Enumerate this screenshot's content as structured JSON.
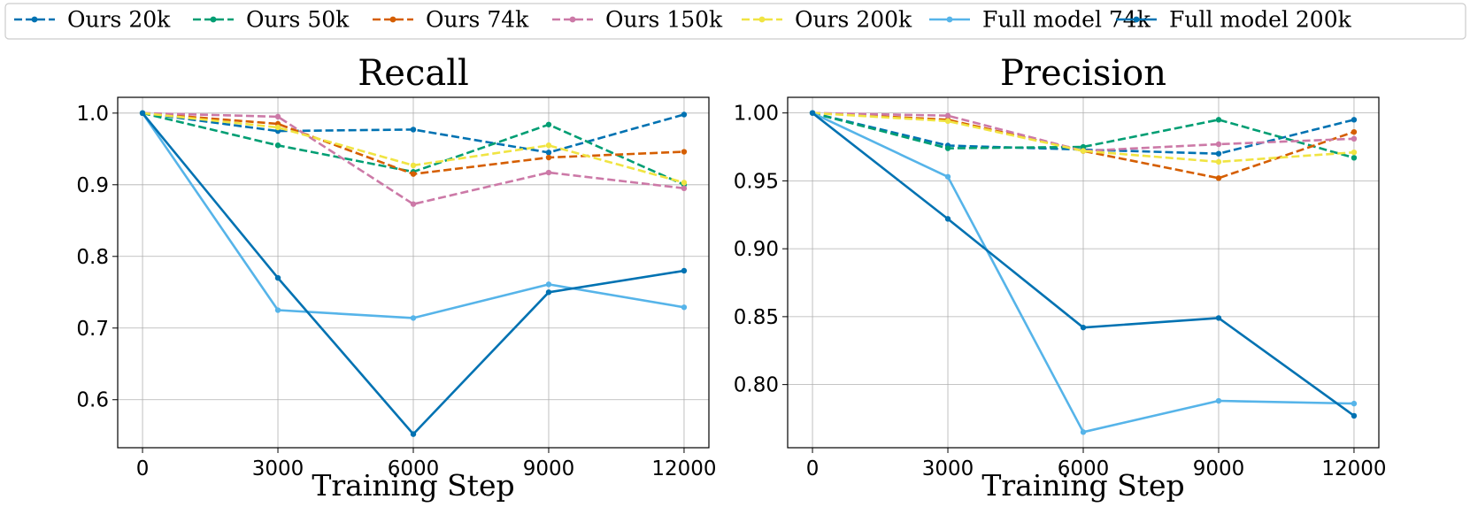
{
  "legend": [
    {
      "name": "Ours 20k",
      "color": "#0072B2",
      "dashed": true
    },
    {
      "name": "Ours 50k",
      "color": "#009E73",
      "dashed": true
    },
    {
      "name": "Ours 74k",
      "color": "#D55E00",
      "dashed": true
    },
    {
      "name": "Ours 150k",
      "color": "#CC79A7",
      "dashed": true
    },
    {
      "name": "Ours 200k",
      "color": "#F0E442",
      "dashed": true
    },
    {
      "name": "Full model 74k",
      "color": "#56B4E9",
      "dashed": false
    },
    {
      "name": "Full model 200k",
      "color": "#0072B2",
      "dashed": false
    }
  ],
  "chart_data": [
    {
      "type": "line",
      "title": "Recall",
      "xlabel": "Training Step",
      "ylabel": "",
      "x": [
        0,
        3000,
        6000,
        9000,
        12000
      ],
      "xticks": [
        "0",
        "3000",
        "6000",
        "9000",
        "12000"
      ],
      "yticks": [
        "0.6",
        "0.7",
        "0.8",
        "0.9",
        "1.0"
      ],
      "ytick_values": [
        0.6,
        0.7,
        0.8,
        0.9,
        1.0
      ],
      "xlim": [
        -550,
        12550
      ],
      "ylim": [
        0.533,
        1.022
      ],
      "grid": true,
      "series": [
        {
          "name": "Ours 20k",
          "values": [
            1.0,
            0.975,
            0.977,
            0.945,
            0.998
          ]
        },
        {
          "name": "Ours 50k",
          "values": [
            1.0,
            0.955,
            0.918,
            0.984,
            0.9
          ]
        },
        {
          "name": "Ours 74k",
          "values": [
            1.0,
            0.985,
            0.915,
            0.938,
            0.946
          ]
        },
        {
          "name": "Ours 150k",
          "values": [
            1.0,
            0.995,
            0.873,
            0.917,
            0.895
          ]
        },
        {
          "name": "Ours 200k",
          "values": [
            1.0,
            0.98,
            0.927,
            0.955,
            0.903
          ]
        },
        {
          "name": "Full model 74k",
          "values": [
            1.0,
            0.725,
            0.714,
            0.761,
            0.729
          ]
        },
        {
          "name": "Full model 200k",
          "values": [
            1.0,
            0.77,
            0.552,
            0.75,
            0.78
          ]
        }
      ]
    },
    {
      "type": "line",
      "title": "Precision",
      "xlabel": "Training Step",
      "ylabel": "",
      "x": [
        0,
        3000,
        6000,
        9000,
        12000
      ],
      "xticks": [
        "0",
        "3000",
        "6000",
        "9000",
        "12000"
      ],
      "yticks": [
        "0.80",
        "0.85",
        "0.90",
        "0.95",
        "1.00"
      ],
      "ytick_values": [
        0.8,
        0.85,
        0.9,
        0.95,
        1.0
      ],
      "xlim": [
        -550,
        12550
      ],
      "ylim": [
        0.7535,
        1.0115
      ],
      "grid": true,
      "series": [
        {
          "name": "Ours 20k",
          "values": [
            1.0,
            0.976,
            0.973,
            0.97,
            0.995
          ]
        },
        {
          "name": "Ours 50k",
          "values": [
            1.0,
            0.974,
            0.975,
            0.995,
            0.967
          ]
        },
        {
          "name": "Ours 74k",
          "values": [
            1.0,
            0.995,
            0.972,
            0.952,
            0.986
          ]
        },
        {
          "name": "Ours 150k",
          "values": [
            1.0,
            0.998,
            0.972,
            0.977,
            0.981
          ]
        },
        {
          "name": "Ours 200k",
          "values": [
            1.0,
            0.994,
            0.972,
            0.964,
            0.971
          ]
        },
        {
          "name": "Full model 74k",
          "values": [
            1.0,
            0.953,
            0.765,
            0.788,
            0.786
          ]
        },
        {
          "name": "Full model 200k",
          "values": [
            1.0,
            0.922,
            0.842,
            0.849,
            0.777
          ]
        }
      ]
    }
  ]
}
